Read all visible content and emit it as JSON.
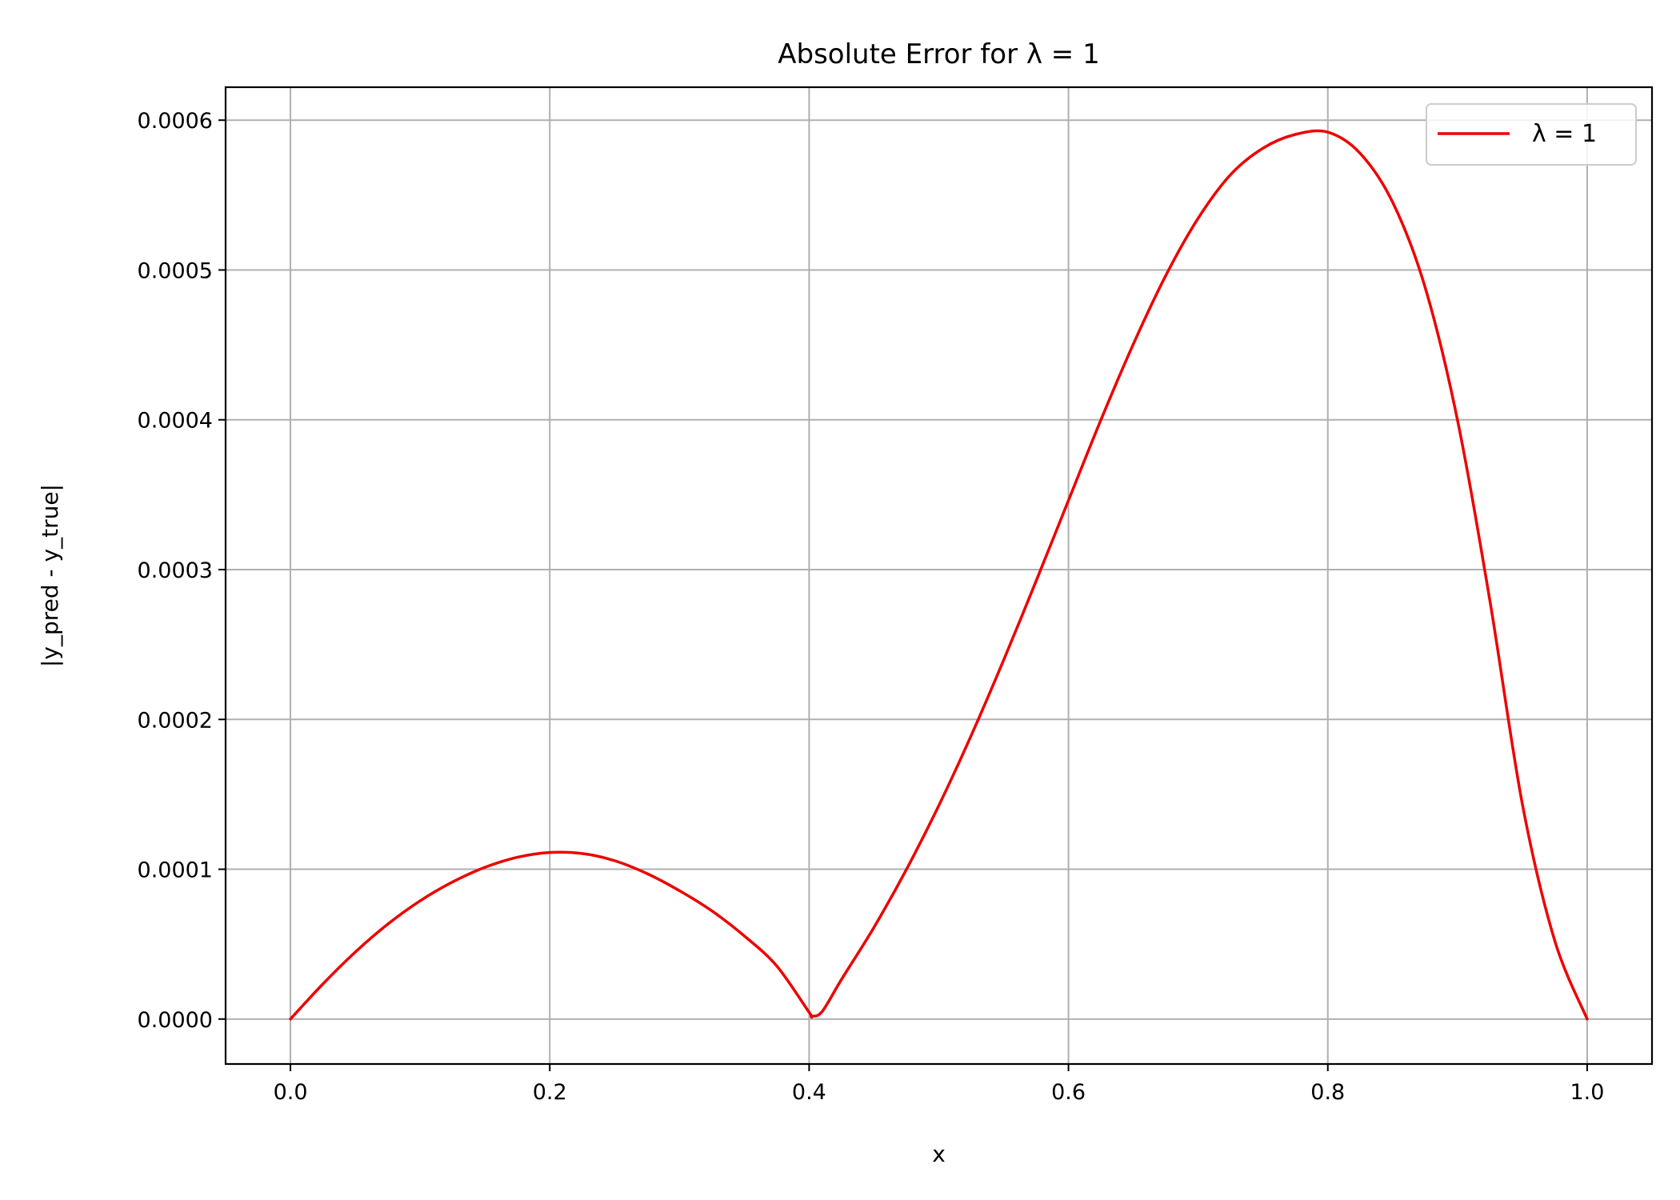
{
  "chart_data": {
    "type": "line",
    "title": "Absolute Error for λ = 1",
    "xlabel": "x",
    "ylabel": "|y_pred - y_true|",
    "xlim": [
      -0.05,
      1.05
    ],
    "ylim": [
      -3e-05,
      0.000622
    ],
    "xticks": [
      0.0,
      0.2,
      0.4,
      0.6,
      0.8,
      1.0
    ],
    "xtick_labels": [
      "0.0",
      "0.2",
      "0.4",
      "0.6",
      "0.8",
      "1.0"
    ],
    "yticks": [
      0.0,
      0.0001,
      0.0002,
      0.0003,
      0.0004,
      0.0005,
      0.0006
    ],
    "ytick_labels": [
      "0.0000",
      "0.0001",
      "0.0002",
      "0.0003",
      "0.0004",
      "0.0005",
      "0.0006"
    ],
    "grid": true,
    "legend_position": "top-right",
    "series": [
      {
        "name": "λ = 1",
        "color": "#ee0000",
        "x": [
          0.0,
          0.025,
          0.05,
          0.075,
          0.1,
          0.125,
          0.15,
          0.175,
          0.2,
          0.225,
          0.25,
          0.275,
          0.3,
          0.325,
          0.35,
          0.375,
          0.4,
          0.402,
          0.41,
          0.425,
          0.45,
          0.475,
          0.5,
          0.525,
          0.55,
          0.575,
          0.6,
          0.625,
          0.65,
          0.675,
          0.7,
          0.725,
          0.75,
          0.775,
          0.8,
          0.825,
          0.85,
          0.875,
          0.9,
          0.925,
          0.95,
          0.975,
          1.0
        ],
        "y": [
          0.0,
          2.34e-05,
          4.47e-05,
          6.33e-05,
          7.89e-05,
          9.15e-05,
          0.0001013,
          0.000108,
          0.0001112,
          0.0001105,
          0.0001057,
          9.71e-05,
          8.57e-05,
          7.22e-05,
          5.55e-05,
          3.55e-05,
          4.5e-06,
          2e-06,
          5e-06,
          2.65e-05,
          6.12e-05,
          9.98e-05,
          0.0001425,
          0.0001893,
          0.0002396,
          0.0002923,
          0.0003462,
          0.0003999,
          0.0004505,
          0.0004962,
          0.0005345,
          0.0005636,
          0.0005813,
          0.0005905,
          0.000592,
          0.0005778,
          0.0005452,
          0.0004885,
          0.0003998,
          0.0002792,
          0.0001436,
          5.23e-05,
          0.0
        ]
      }
    ]
  }
}
